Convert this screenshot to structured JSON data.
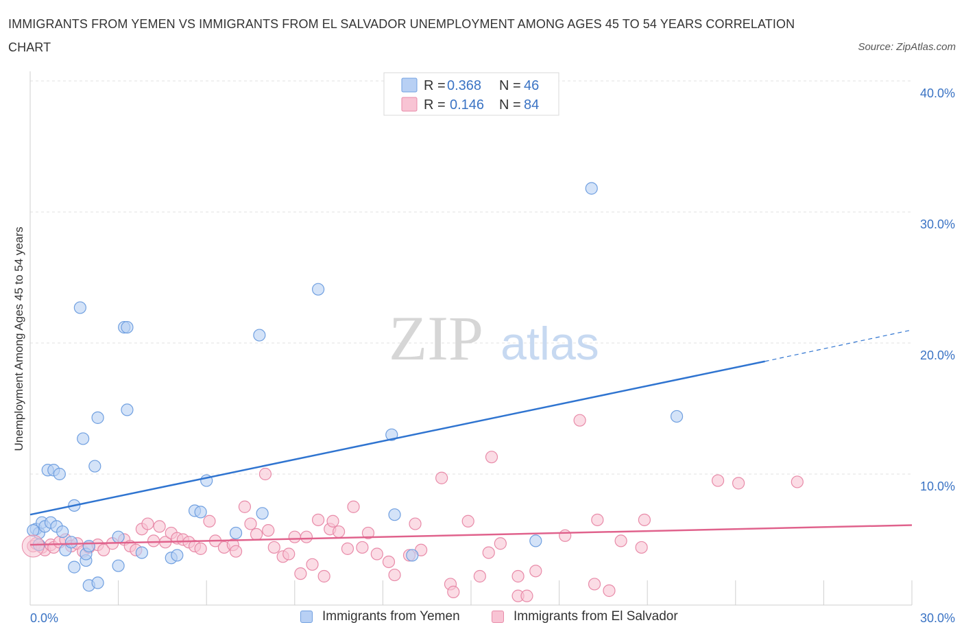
{
  "title": "IMMIGRANTS FROM YEMEN VS IMMIGRANTS FROM EL SALVADOR UNEMPLOYMENT AMONG AGES 45 TO 54 YEARS CORRELATION CHART",
  "source": "Source: ZipAtlas.com",
  "watermark": {
    "zip": "ZIP",
    "atlas": "atlas"
  },
  "legend_top": [
    {
      "r_label": "R =",
      "r_value": "0.368",
      "n_label": "N =",
      "n_value": "46"
    },
    {
      "r_label": "R =",
      "r_value": "0.146",
      "n_label": "N =",
      "n_value": "84"
    }
  ],
  "legend_bottom": [
    "Immigrants from Yemen",
    "Immigrants from El Salvador"
  ],
  "colors": {
    "yemen_fill": "#b8d0f4",
    "yemen_stroke": "#6f9fe0",
    "yemen_line": "#2f74d0",
    "salvador_fill": "#f8c4d4",
    "salvador_stroke": "#e88aa8",
    "salvador_line": "#e0628c",
    "axis_text": "#3a73c4",
    "grid": "#e2e2e2"
  },
  "chart_data": {
    "type": "scatter",
    "title": "IMMIGRANTS FROM YEMEN VS IMMIGRANTS FROM EL SALVADOR UNEMPLOYMENT AMONG AGES 45 TO 54 YEARS CORRELATION CHART",
    "xlabel": "",
    "ylabel": "Unemployment Among Ages 45 to 54 years",
    "xlim": [
      0,
      30
    ],
    "ylim": [
      0,
      40
    ],
    "x_tick_labels": [
      "0.0%",
      "30.0%"
    ],
    "y_ticks": [
      10,
      20,
      30,
      40
    ],
    "y_tick_labels": [
      "10.0%",
      "20.0%",
      "30.0%",
      "40.0%"
    ],
    "grid": true,
    "legend_position": "top-center",
    "series": [
      {
        "name": "Immigrants from Yemen",
        "R": 0.368,
        "N": 46,
        "trend": {
          "x_start": 0,
          "y_start": 6.9,
          "x_end": 25,
          "y_end": 18.6,
          "dash_to_x": 30,
          "dash_to_y": 21.0
        },
        "points": [
          {
            "x": 0.2,
            "y": 5.8
          },
          {
            "x": 0.3,
            "y": 5.5
          },
          {
            "x": 0.4,
            "y": 6.3
          },
          {
            "x": 0.5,
            "y": 6.0
          },
          {
            "x": 0.6,
            "y": 10.3
          },
          {
            "x": 0.7,
            "y": 6.3
          },
          {
            "x": 0.8,
            "y": 10.3
          },
          {
            "x": 0.9,
            "y": 6.0
          },
          {
            "x": 1.0,
            "y": 10.0
          },
          {
            "x": 1.1,
            "y": 5.6
          },
          {
            "x": 1.2,
            "y": 4.2
          },
          {
            "x": 1.4,
            "y": 4.8
          },
          {
            "x": 1.5,
            "y": 2.9
          },
          {
            "x": 1.5,
            "y": 7.6
          },
          {
            "x": 1.7,
            "y": 22.7
          },
          {
            "x": 1.8,
            "y": 12.7
          },
          {
            "x": 1.9,
            "y": 3.4
          },
          {
            "x": 1.9,
            "y": 3.9
          },
          {
            "x": 2.0,
            "y": 1.5
          },
          {
            "x": 2.2,
            "y": 10.6
          },
          {
            "x": 2.3,
            "y": 1.7
          },
          {
            "x": 2.3,
            "y": 14.3
          },
          {
            "x": 3.0,
            "y": 3.0
          },
          {
            "x": 3.0,
            "y": 5.2
          },
          {
            "x": 3.2,
            "y": 21.2
          },
          {
            "x": 3.3,
            "y": 21.2
          },
          {
            "x": 3.3,
            "y": 14.9
          },
          {
            "x": 3.8,
            "y": 4.0
          },
          {
            "x": 4.8,
            "y": 3.6
          },
          {
            "x": 5.0,
            "y": 3.8
          },
          {
            "x": 5.6,
            "y": 7.2
          },
          {
            "x": 5.8,
            "y": 7.1
          },
          {
            "x": 6.0,
            "y": 9.5
          },
          {
            "x": 7.0,
            "y": 5.5
          },
          {
            "x": 7.8,
            "y": 20.6
          },
          {
            "x": 7.9,
            "y": 7.0
          },
          {
            "x": 9.8,
            "y": 24.1
          },
          {
            "x": 12.3,
            "y": 13.0
          },
          {
            "x": 12.4,
            "y": 6.9
          },
          {
            "x": 13.0,
            "y": 3.8
          },
          {
            "x": 17.2,
            "y": 4.9
          },
          {
            "x": 19.1,
            "y": 31.8
          },
          {
            "x": 22.0,
            "y": 14.4
          },
          {
            "x": 0.1,
            "y": 5.7
          },
          {
            "x": 0.3,
            "y": 4.6
          },
          {
            "x": 2.0,
            "y": 4.5
          }
        ]
      },
      {
        "name": "Immigrants from El Salvador",
        "R": 0.146,
        "N": 84,
        "trend": {
          "x_start": 0,
          "y_start": 4.6,
          "x_end": 30,
          "y_end": 6.1
        },
        "points": [
          {
            "x": 0.1,
            "y": 4.5
          },
          {
            "x": 0.2,
            "y": 4.7
          },
          {
            "x": 0.4,
            "y": 4.4
          },
          {
            "x": 0.5,
            "y": 4.2
          },
          {
            "x": 0.7,
            "y": 4.6
          },
          {
            "x": 0.8,
            "y": 4.4
          },
          {
            "x": 1.0,
            "y": 4.8
          },
          {
            "x": 1.2,
            "y": 5.0
          },
          {
            "x": 1.4,
            "y": 4.5
          },
          {
            "x": 1.6,
            "y": 4.7
          },
          {
            "x": 1.8,
            "y": 4.1
          },
          {
            "x": 2.0,
            "y": 4.4
          },
          {
            "x": 2.3,
            "y": 4.6
          },
          {
            "x": 2.5,
            "y": 4.2
          },
          {
            "x": 2.8,
            "y": 4.7
          },
          {
            "x": 3.2,
            "y": 5.0
          },
          {
            "x": 3.4,
            "y": 4.5
          },
          {
            "x": 3.6,
            "y": 4.2
          },
          {
            "x": 3.8,
            "y": 5.8
          },
          {
            "x": 4.0,
            "y": 6.2
          },
          {
            "x": 4.2,
            "y": 4.9
          },
          {
            "x": 4.4,
            "y": 6.0
          },
          {
            "x": 4.6,
            "y": 4.8
          },
          {
            "x": 4.8,
            "y": 5.5
          },
          {
            "x": 5.0,
            "y": 5.1
          },
          {
            "x": 5.2,
            "y": 5.0
          },
          {
            "x": 5.4,
            "y": 4.8
          },
          {
            "x": 5.6,
            "y": 4.5
          },
          {
            "x": 5.8,
            "y": 4.3
          },
          {
            "x": 6.1,
            "y": 6.4
          },
          {
            "x": 6.3,
            "y": 4.9
          },
          {
            "x": 6.6,
            "y": 4.4
          },
          {
            "x": 6.9,
            "y": 4.6
          },
          {
            "x": 7.0,
            "y": 4.1
          },
          {
            "x": 7.3,
            "y": 7.5
          },
          {
            "x": 7.5,
            "y": 6.2
          },
          {
            "x": 7.7,
            "y": 5.4
          },
          {
            "x": 8.0,
            "y": 10.0
          },
          {
            "x": 8.1,
            "y": 5.7
          },
          {
            "x": 8.3,
            "y": 4.4
          },
          {
            "x": 8.6,
            "y": 3.7
          },
          {
            "x": 8.8,
            "y": 3.9
          },
          {
            "x": 9.0,
            "y": 5.2
          },
          {
            "x": 9.2,
            "y": 2.4
          },
          {
            "x": 9.4,
            "y": 5.2
          },
          {
            "x": 9.6,
            "y": 3.1
          },
          {
            "x": 9.8,
            "y": 6.5
          },
          {
            "x": 10.0,
            "y": 2.2
          },
          {
            "x": 10.2,
            "y": 5.8
          },
          {
            "x": 10.3,
            "y": 6.4
          },
          {
            "x": 10.5,
            "y": 5.6
          },
          {
            "x": 10.8,
            "y": 4.3
          },
          {
            "x": 11.0,
            "y": 7.5
          },
          {
            "x": 11.3,
            "y": 4.4
          },
          {
            "x": 11.5,
            "y": 5.5
          },
          {
            "x": 11.8,
            "y": 3.9
          },
          {
            "x": 12.2,
            "y": 3.3
          },
          {
            "x": 12.4,
            "y": 2.3
          },
          {
            "x": 12.9,
            "y": 3.8
          },
          {
            "x": 13.1,
            "y": 6.2
          },
          {
            "x": 13.3,
            "y": 4.2
          },
          {
            "x": 14.0,
            "y": 9.7
          },
          {
            "x": 14.3,
            "y": 1.6
          },
          {
            "x": 14.4,
            "y": 1.0
          },
          {
            "x": 14.9,
            "y": 6.4
          },
          {
            "x": 15.3,
            "y": 2.2
          },
          {
            "x": 15.6,
            "y": 4.0
          },
          {
            "x": 15.7,
            "y": 11.3
          },
          {
            "x": 16.0,
            "y": 4.7
          },
          {
            "x": 16.6,
            "y": 0.7
          },
          {
            "x": 16.6,
            "y": 2.2
          },
          {
            "x": 16.9,
            "y": 0.7
          },
          {
            "x": 17.2,
            "y": 2.6
          },
          {
            "x": 18.2,
            "y": 5.3
          },
          {
            "x": 18.7,
            "y": 14.1
          },
          {
            "x": 19.2,
            "y": 1.6
          },
          {
            "x": 19.3,
            "y": 6.5
          },
          {
            "x": 19.7,
            "y": 1.1
          },
          {
            "x": 20.1,
            "y": 4.9
          },
          {
            "x": 20.8,
            "y": 4.4
          },
          {
            "x": 20.9,
            "y": 6.5
          },
          {
            "x": 23.4,
            "y": 9.5
          },
          {
            "x": 24.1,
            "y": 9.3
          },
          {
            "x": 26.1,
            "y": 9.4
          }
        ]
      }
    ]
  }
}
